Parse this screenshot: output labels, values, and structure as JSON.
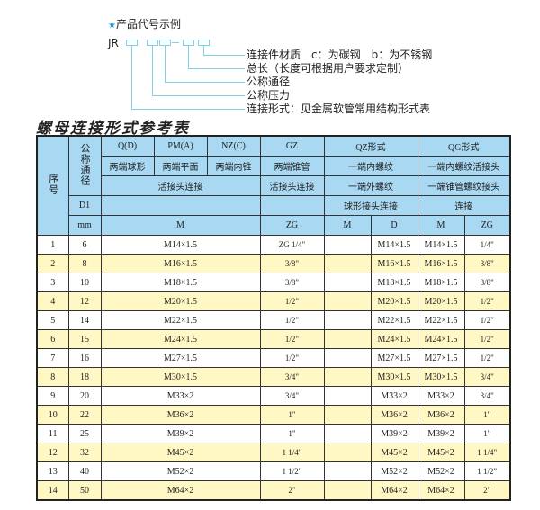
{
  "example": {
    "title": "产品代号示例",
    "code": "JR",
    "labels": [
      "连接件材质　c：为碳钢　b：为不锈钢",
      "总长（长度可根据用户要求定制）",
      "公称通径",
      "公称压力",
      "连接形式：见金属软管常用结构形式表"
    ]
  },
  "table_title": "螺母连接形式参考表",
  "header": {
    "seq": "序号",
    "dn": "公称通径",
    "q": "Q(D)",
    "pm": "PM(A)",
    "nz": "NZ(C)",
    "gz": "GZ",
    "qz": "QZ形式",
    "qg": "QG形式",
    "q2": "两端球形",
    "pm2": "两端平面",
    "nz2": "两端内锥",
    "gz2": "两端锥管",
    "qz2": "一端内螺纹",
    "qg2": "一端内螺纹活接头",
    "union": "活接头连接",
    "gz3": "活接头连接",
    "qz3": "一端外螺纹",
    "qg3": "一端锥管螺纹接头",
    "d1": "D1",
    "qz4": "球形接头连接",
    "qg4": "连接",
    "mm": "mm",
    "m": "M",
    "zg": "ZG",
    "qzm": "M",
    "qzd": "D",
    "qgm": "M",
    "qgzg": "ZG"
  },
  "rows": [
    {
      "seq": "1",
      "d1": "6",
      "m": "M14×1.5",
      "zg": "ZG 1/4\"",
      "qz_m": "",
      "qz_d": "M14×1.5",
      "qg_m": "M14×1.5",
      "qg_zg": "1/4\""
    },
    {
      "seq": "2",
      "d1": "8",
      "m": "M16×1.5",
      "zg": "3/8\"",
      "qz_m": "",
      "qz_d": "M16×1.5",
      "qg_m": "M16×1.5",
      "qg_zg": "3/8\""
    },
    {
      "seq": "3",
      "d1": "10",
      "m": "M18×1.5",
      "zg": "3/8\"",
      "qz_m": "",
      "qz_d": "M18×1.5",
      "qg_m": "M18×1.5",
      "qg_zg": "3/8\""
    },
    {
      "seq": "4",
      "d1": "12",
      "m": "M20×1.5",
      "zg": "1/2\"",
      "qz_m": "",
      "qz_d": "M20×1.5",
      "qg_m": "M20×1.5",
      "qg_zg": "1/2\""
    },
    {
      "seq": "5",
      "d1": "14",
      "m": "M22×1.5",
      "zg": "1/2\"",
      "qz_m": "",
      "qz_d": "M22×1.5",
      "qg_m": "M22×1.5",
      "qg_zg": "1/2\""
    },
    {
      "seq": "6",
      "d1": "15",
      "m": "M24×1.5",
      "zg": "1/2\"",
      "qz_m": "",
      "qz_d": "M24×1.5",
      "qg_m": "M24×1.5",
      "qg_zg": "1/2\""
    },
    {
      "seq": "7",
      "d1": "16",
      "m": "M27×1.5",
      "zg": "1/2\"",
      "qz_m": "",
      "qz_d": "M27×1.5",
      "qg_m": "M27×1.5",
      "qg_zg": "1/2\""
    },
    {
      "seq": "8",
      "d1": "18",
      "m": "M30×1.5",
      "zg": "3/4\"",
      "qz_m": "",
      "qz_d": "M30×1.5",
      "qg_m": "M30×1.5",
      "qg_zg": "3/4\""
    },
    {
      "seq": "9",
      "d1": "20",
      "m": "M33×2",
      "zg": "3/4\"",
      "qz_m": "",
      "qz_d": "M33×2",
      "qg_m": "M33×2",
      "qg_zg": "3/4\""
    },
    {
      "seq": "10",
      "d1": "22",
      "m": "M36×2",
      "zg": "1\"",
      "qz_m": "",
      "qz_d": "M36×2",
      "qg_m": "M36×2",
      "qg_zg": "1\""
    },
    {
      "seq": "11",
      "d1": "25",
      "m": "M39×2",
      "zg": "1\"",
      "qz_m": "",
      "qz_d": "M39×2",
      "qg_m": "M39×2",
      "qg_zg": "1\""
    },
    {
      "seq": "12",
      "d1": "32",
      "m": "M45×2",
      "zg": "1 1/4\"",
      "qz_m": "",
      "qz_d": "M45×2",
      "qg_m": "M45×2",
      "qg_zg": "1 1/4\""
    },
    {
      "seq": "13",
      "d1": "40",
      "m": "M52×2",
      "zg": "1 1/2\"",
      "qz_m": "",
      "qz_d": "M52×2",
      "qg_m": "M52×2",
      "qg_zg": "1 1/2\""
    },
    {
      "seq": "14",
      "d1": "50",
      "m": "M64×2",
      "zg": "2\"",
      "qz_m": "",
      "qz_d": "M64×2",
      "qg_m": "M64×2",
      "qg_zg": "2\""
    }
  ],
  "colors": {
    "header_bg": "#a8d8f2",
    "alt_row_bg": "#fff8c4",
    "diagram_line": "#7fd0e6",
    "star": "#1a9ad6"
  }
}
